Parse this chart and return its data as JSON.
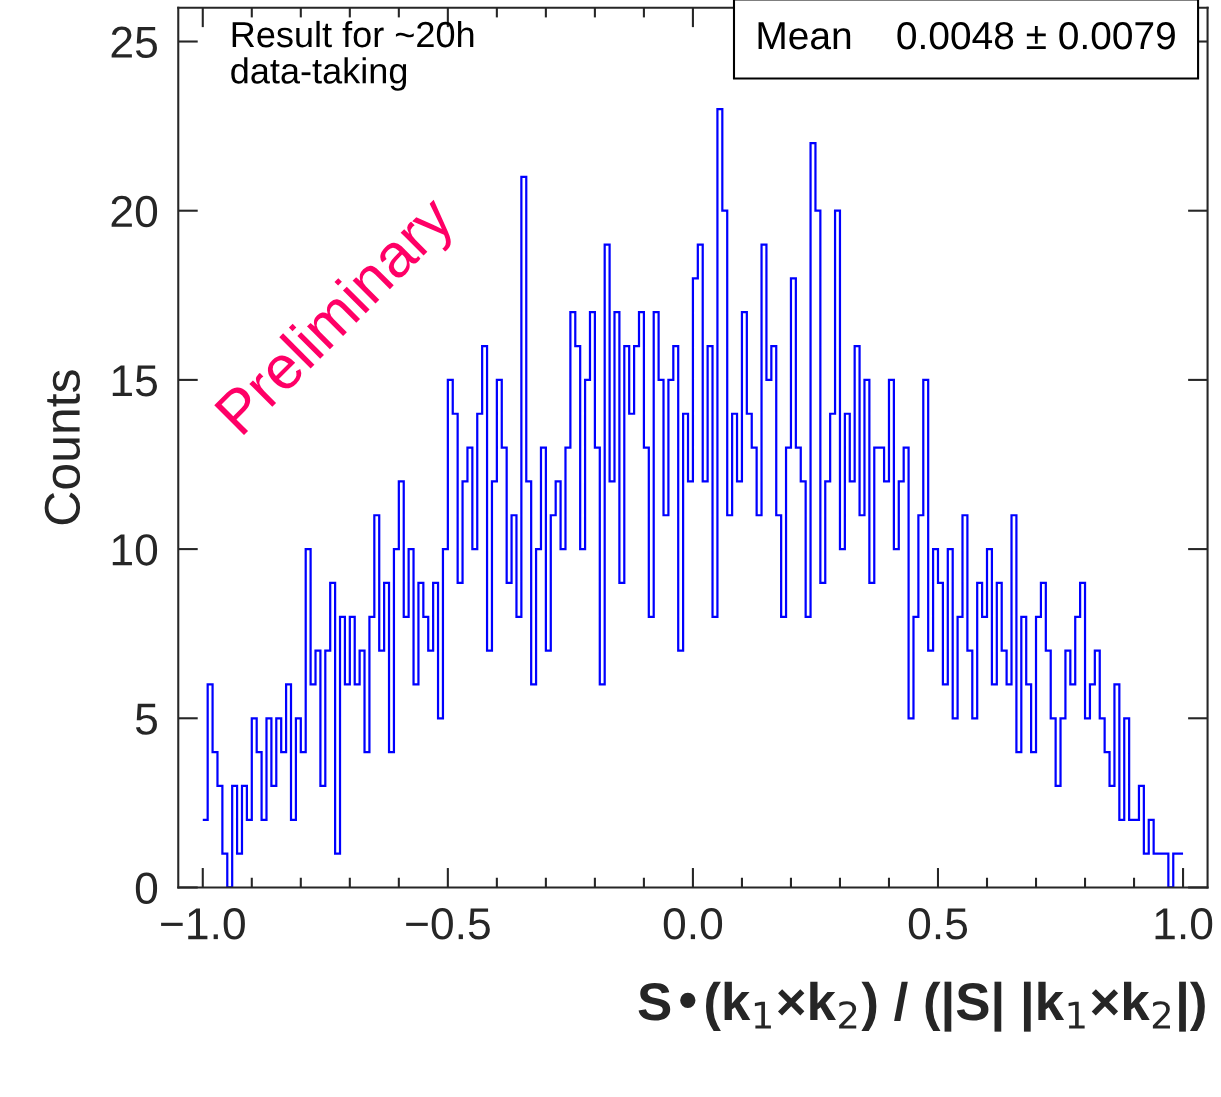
{
  "chart_data": {
    "type": "histogram",
    "xlabel": "S•(k$_{1}$×k$_{2}$) / (|S| |k$_{1}$×k$_{2}$|)",
    "ylabel": "Counts",
    "bins": [
      -1.0,
      -0.99,
      -0.98,
      -0.97,
      -0.96,
      -0.95,
      -0.94,
      -0.93,
      -0.92,
      -0.91,
      -0.9,
      -0.89,
      -0.88,
      -0.87,
      -0.86,
      -0.85,
      -0.84,
      -0.83,
      -0.82,
      -0.81,
      -0.8,
      -0.79,
      -0.78,
      -0.77,
      -0.76,
      -0.75,
      -0.74,
      -0.73,
      -0.72,
      -0.71,
      -0.7,
      -0.69,
      -0.68,
      -0.67,
      -0.66,
      -0.65,
      -0.64,
      -0.63,
      -0.62,
      -0.61,
      -0.6,
      -0.59,
      -0.58,
      -0.57,
      -0.56,
      -0.55,
      -0.54,
      -0.53,
      -0.52,
      -0.51,
      -0.5,
      -0.49,
      -0.48,
      -0.47,
      -0.46,
      -0.45,
      -0.44,
      -0.43,
      -0.42,
      -0.41,
      -0.4,
      -0.39,
      -0.38,
      -0.37,
      -0.36,
      -0.35,
      -0.34,
      -0.33,
      -0.32,
      -0.31,
      -0.3,
      -0.29,
      -0.28,
      -0.27,
      -0.26,
      -0.25,
      -0.24,
      -0.23,
      -0.22,
      -0.21,
      -0.2,
      -0.19,
      -0.18,
      -0.17,
      -0.16,
      -0.15,
      -0.14,
      -0.13,
      -0.12,
      -0.11,
      -0.1,
      -0.09,
      -0.08,
      -0.07,
      -0.06,
      -0.05,
      -0.04,
      -0.03,
      -0.02,
      -0.01,
      0.0,
      0.01,
      0.02,
      0.03,
      0.04,
      0.05,
      0.06,
      0.07,
      0.08,
      0.09,
      0.1,
      0.11,
      0.12,
      0.13,
      0.14,
      0.15,
      0.16,
      0.17,
      0.18,
      0.19,
      0.2,
      0.21,
      0.22,
      0.23,
      0.24,
      0.25,
      0.26,
      0.27,
      0.28,
      0.29,
      0.3,
      0.31,
      0.32,
      0.33,
      0.34,
      0.35,
      0.36,
      0.37,
      0.38,
      0.39,
      0.4,
      0.41,
      0.42,
      0.43,
      0.44,
      0.45,
      0.46,
      0.47,
      0.48,
      0.49,
      0.5,
      0.51,
      0.52,
      0.53,
      0.54,
      0.55,
      0.56,
      0.57,
      0.58,
      0.59,
      0.6,
      0.61,
      0.62,
      0.63,
      0.64,
      0.65,
      0.66,
      0.67,
      0.68,
      0.69,
      0.7,
      0.71,
      0.72,
      0.73,
      0.74,
      0.75,
      0.76,
      0.77,
      0.78,
      0.79,
      0.8,
      0.81,
      0.82,
      0.83,
      0.84,
      0.85,
      0.86,
      0.87,
      0.88,
      0.89,
      0.9,
      0.91,
      0.92,
      0.93,
      0.94,
      0.95,
      0.96,
      0.97,
      0.98,
      0.99,
      1.0
    ],
    "values": [
      2,
      6,
      4,
      3,
      1,
      0,
      3,
      1,
      3,
      2,
      5,
      4,
      2,
      5,
      3,
      5,
      4,
      6,
      2,
      5,
      4,
      10,
      6,
      7,
      3,
      7,
      9,
      1,
      8,
      6,
      8,
      6,
      7,
      4,
      8,
      11,
      7,
      9,
      4,
      10,
      12,
      8,
      10,
      6,
      9,
      8,
      7,
      9,
      5,
      10,
      15,
      14,
      9,
      12,
      13,
      10,
      14,
      16,
      7,
      12,
      15,
      13,
      9,
      11,
      8,
      21,
      12,
      6,
      10,
      13,
      7,
      11,
      12,
      10,
      13,
      17,
      16,
      10,
      15,
      17,
      13,
      6,
      19,
      12,
      17,
      9,
      16,
      14,
      16,
      17,
      13,
      8,
      17,
      15,
      11,
      15,
      16,
      7,
      14,
      12,
      18,
      19,
      12,
      16,
      8,
      23,
      20,
      11,
      14,
      12,
      17,
      14,
      13,
      11,
      19,
      15,
      16,
      11,
      8,
      13,
      18,
      13,
      12,
      8,
      22,
      20,
      9,
      12,
      14,
      20,
      10,
      14,
      12,
      16,
      11,
      15,
      9,
      13,
      13,
      12,
      15,
      10,
      12,
      13,
      5,
      8,
      11,
      15,
      7,
      10,
      9,
      6,
      10,
      5,
      8,
      11,
      7,
      5,
      9,
      8,
      10,
      6,
      9,
      7,
      6,
      11,
      4,
      8,
      6,
      4,
      8,
      9,
      7,
      5,
      3,
      5,
      7,
      6,
      8,
      9,
      5,
      6,
      7,
      5,
      4,
      3,
      6,
      2,
      5,
      2,
      2,
      3,
      1,
      2,
      1,
      1,
      1,
      0,
      1,
      1
    ],
    "color": "#0000ff",
    "xlim": [
      -1.05,
      1.05
    ],
    "xticks": [
      {
        "value": -1.0,
        "label": "−1.0"
      },
      {
        "value": -0.5,
        "label": "−0.5"
      },
      {
        "value": 0.0,
        "label": "0.0"
      },
      {
        "value": 0.5,
        "label": "0.5"
      },
      {
        "value": 1.0,
        "label": "1.0"
      }
    ],
    "ylim": [
      0,
      26
    ],
    "yticks": [
      0,
      5,
      10,
      15,
      20,
      25
    ],
    "grid": false,
    "annotations": [
      "Result for ~20h\ndata-taking",
      "Preliminary",
      "Mean    0.0048 ± 0.0079"
    ]
  }
}
